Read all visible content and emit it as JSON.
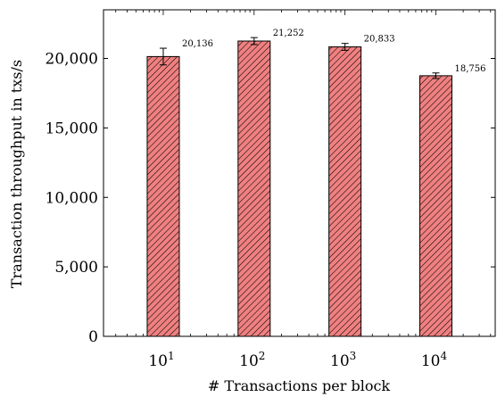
{
  "chart_data": {
    "type": "bar",
    "categories": [
      "10^1",
      "10^2",
      "10^3",
      "10^4"
    ],
    "category_labels": [
      {
        "base": "10",
        "exp": "1"
      },
      {
        "base": "10",
        "exp": "2"
      },
      {
        "base": "10",
        "exp": "3"
      },
      {
        "base": "10",
        "exp": "4"
      }
    ],
    "x_values": [
      10,
      100,
      1000,
      10000
    ],
    "xscale": "log",
    "xlim": [
      2.2,
      45000
    ],
    "values": [
      20136,
      21252,
      20833,
      18756
    ],
    "errors": [
      600,
      250,
      250,
      200
    ],
    "data_labels": [
      "20,136",
      "21,252",
      "20,833",
      "18,756"
    ],
    "ylim": [
      0,
      23500
    ],
    "yticks": [
      0,
      5000,
      10000,
      15000,
      20000
    ],
    "ytick_labels": [
      "0",
      "5,000",
      "10,000",
      "15,000",
      "20,000"
    ],
    "xlabel": "# Transactions per block",
    "ylabel": "Transaction throughput in txs/s",
    "title": "",
    "grid": false,
    "legend": false,
    "bar_fill": "#f08080",
    "bar_hatch": "diagonal lines",
    "bar_stroke": "#000000"
  }
}
